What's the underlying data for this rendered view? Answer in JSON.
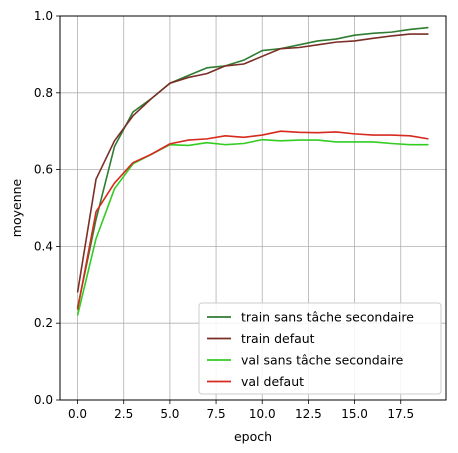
{
  "chart_data": {
    "type": "line",
    "title": "",
    "xlabel": "epoch",
    "ylabel": "moyenne",
    "xlim": [
      -0.95,
      19.95
    ],
    "ylim": [
      0.0,
      1.0
    ],
    "x_ticks": [
      0.0,
      2.5,
      5.0,
      7.5,
      10.0,
      12.5,
      15.0,
      17.5
    ],
    "x_tick_labels": [
      "0.0",
      "2.5",
      "5.0",
      "7.5",
      "10.0",
      "12.5",
      "15.0",
      "17.5"
    ],
    "y_ticks": [
      0.0,
      0.2,
      0.4,
      0.6,
      0.8,
      1.0
    ],
    "y_tick_labels": [
      "0.0",
      "0.2",
      "0.4",
      "0.6",
      "0.8",
      "1.0"
    ],
    "grid": true,
    "legend_position": "lower-right",
    "x": [
      0,
      1,
      2,
      3,
      4,
      5,
      6,
      7,
      8,
      9,
      10,
      11,
      12,
      13,
      14,
      15,
      16,
      17,
      18,
      19
    ],
    "series": [
      {
        "name": "train sans tâche secondaire",
        "color": "#2e7d32",
        "values": [
          0.24,
          0.47,
          0.66,
          0.75,
          0.785,
          0.825,
          0.845,
          0.865,
          0.87,
          0.885,
          0.91,
          0.915,
          0.925,
          0.935,
          0.94,
          0.95,
          0.955,
          0.958,
          0.965,
          0.97
        ]
      },
      {
        "name": "train defaut",
        "color": "#7b2e26",
        "values": [
          0.28,
          0.575,
          0.675,
          0.74,
          0.785,
          0.825,
          0.84,
          0.85,
          0.87,
          0.875,
          0.895,
          0.915,
          0.918,
          0.925,
          0.932,
          0.935,
          0.942,
          0.948,
          0.953,
          0.953
        ]
      },
      {
        "name": "val sans tâche secondaire",
        "color": "#33cc22",
        "values": [
          0.22,
          0.42,
          0.55,
          0.615,
          0.64,
          0.665,
          0.663,
          0.67,
          0.665,
          0.668,
          0.678,
          0.675,
          0.677,
          0.677,
          0.672,
          0.672,
          0.672,
          0.668,
          0.665,
          0.665
        ]
      },
      {
        "name": "val defaut",
        "color": "#d62a1e",
        "values": [
          0.235,
          0.49,
          0.565,
          0.618,
          0.64,
          0.667,
          0.677,
          0.68,
          0.688,
          0.684,
          0.69,
          0.7,
          0.697,
          0.696,
          0.698,
          0.693,
          0.69,
          0.69,
          0.688,
          0.68
        ]
      }
    ]
  }
}
